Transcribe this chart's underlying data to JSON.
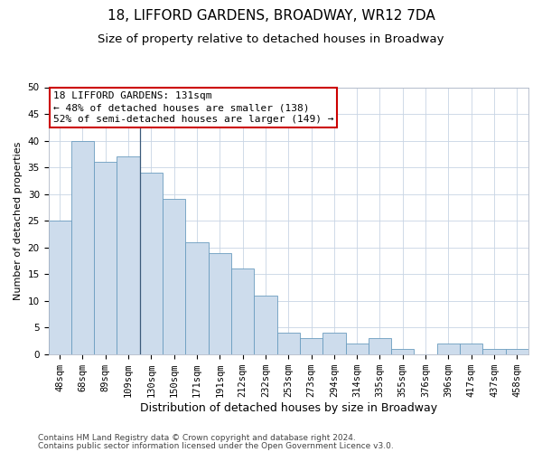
{
  "title": "18, LIFFORD GARDENS, BROADWAY, WR12 7DA",
  "subtitle": "Size of property relative to detached houses in Broadway",
  "xlabel": "Distribution of detached houses by size in Broadway",
  "ylabel": "Number of detached properties",
  "categories": [
    "48sqm",
    "68sqm",
    "89sqm",
    "109sqm",
    "130sqm",
    "150sqm",
    "171sqm",
    "191sqm",
    "212sqm",
    "232sqm",
    "253sqm",
    "273sqm",
    "294sqm",
    "314sqm",
    "335sqm",
    "355sqm",
    "376sqm",
    "396sqm",
    "417sqm",
    "437sqm",
    "458sqm"
  ],
  "values": [
    25,
    40,
    36,
    37,
    34,
    29,
    21,
    19,
    16,
    11,
    4,
    3,
    4,
    2,
    3,
    1,
    0,
    2,
    2,
    1,
    1
  ],
  "bar_color": "#cddcec",
  "bar_edge_color": "#6a9cbf",
  "background_color": "#ffffff",
  "grid_color": "#c8d4e4",
  "ylim": [
    0,
    50
  ],
  "yticks": [
    0,
    5,
    10,
    15,
    20,
    25,
    30,
    35,
    40,
    45,
    50
  ],
  "annotation_line1": "18 LIFFORD GARDENS: 131sqm",
  "annotation_line2": "← 48% of detached houses are smaller (138)",
  "annotation_line3": "52% of semi-detached houses are larger (149) →",
  "annotation_box_color": "#ffffff",
  "annotation_box_edge_color": "#cc0000",
  "property_line_bin_index": 4,
  "footnote1": "Contains HM Land Registry data © Crown copyright and database right 2024.",
  "footnote2": "Contains public sector information licensed under the Open Government Licence v3.0.",
  "title_fontsize": 11,
  "subtitle_fontsize": 9.5,
  "xlabel_fontsize": 9,
  "ylabel_fontsize": 8,
  "tick_fontsize": 7.5,
  "annotation_fontsize": 8,
  "footnote_fontsize": 6.5
}
